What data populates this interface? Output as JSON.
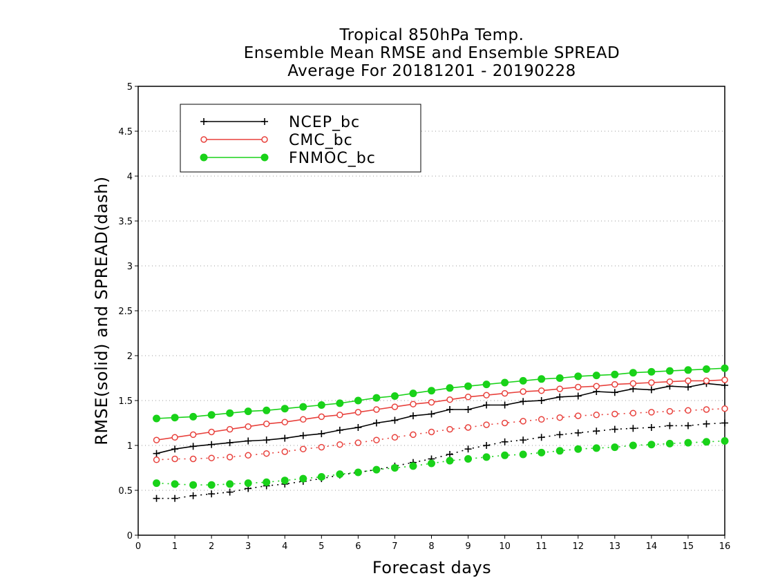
{
  "chart_data": {
    "type": "line",
    "title_lines": [
      "Tropical 850hPa Temp.",
      "Ensemble Mean RMSE and Ensemble SPREAD",
      "Average For 20181201 - 20190228"
    ],
    "xlabel": "Forecast days",
    "ylabel": "RMSE(solid) and SPREAD(dash)",
    "xlim": [
      0,
      16
    ],
    "ylim": [
      0,
      5
    ],
    "xticks": [
      0,
      1,
      2,
      3,
      4,
      5,
      6,
      7,
      8,
      9,
      10,
      11,
      12,
      13,
      14,
      15,
      16
    ],
    "yticks": [
      0,
      0.5,
      1,
      1.5,
      2,
      2.5,
      3,
      3.5,
      4,
      4.5,
      5
    ],
    "ytick_labels": [
      "0",
      "0.5",
      "1",
      "1.5",
      "2",
      "2.5",
      "3",
      "3.5",
      "4",
      "4.5",
      "5"
    ],
    "grid": "horizontal dotted",
    "legend_position": "top-left",
    "x": [
      0.5,
      1,
      1.5,
      2,
      2.5,
      3,
      3.5,
      4,
      4.5,
      5,
      5.5,
      6,
      6.5,
      7,
      7.5,
      8,
      8.5,
      9,
      9.5,
      10,
      10.5,
      11,
      11.5,
      12,
      12.5,
      13,
      13.5,
      14,
      14.5,
      15,
      15.5,
      16
    ],
    "series": [
      {
        "name": "NCEP_bc",
        "color": "#000000",
        "marker": "plus",
        "rmse": [
          0.91,
          0.96,
          0.99,
          1.01,
          1.03,
          1.05,
          1.06,
          1.08,
          1.11,
          1.13,
          1.17,
          1.2,
          1.25,
          1.28,
          1.33,
          1.35,
          1.4,
          1.4,
          1.45,
          1.45,
          1.49,
          1.5,
          1.54,
          1.55,
          1.6,
          1.59,
          1.63,
          1.62,
          1.66,
          1.65,
          1.69,
          1.67
        ],
        "spread": [
          0.41,
          0.41,
          0.44,
          0.46,
          0.48,
          0.52,
          0.55,
          0.57,
          0.6,
          0.63,
          0.67,
          0.7,
          0.73,
          0.77,
          0.81,
          0.85,
          0.9,
          0.96,
          1.0,
          1.04,
          1.06,
          1.09,
          1.12,
          1.14,
          1.16,
          1.18,
          1.19,
          1.2,
          1.22,
          1.22,
          1.24,
          1.25
        ]
      },
      {
        "name": "CMC_bc",
        "color": "#e8413c",
        "marker": "open-circle",
        "rmse": [
          1.06,
          1.09,
          1.12,
          1.15,
          1.18,
          1.21,
          1.24,
          1.26,
          1.29,
          1.32,
          1.34,
          1.37,
          1.4,
          1.43,
          1.46,
          1.48,
          1.51,
          1.54,
          1.56,
          1.58,
          1.6,
          1.61,
          1.63,
          1.65,
          1.66,
          1.68,
          1.69,
          1.7,
          1.71,
          1.72,
          1.72,
          1.73
        ],
        "spread": [
          0.84,
          0.85,
          0.85,
          0.86,
          0.87,
          0.89,
          0.91,
          0.93,
          0.96,
          0.98,
          1.01,
          1.03,
          1.06,
          1.09,
          1.12,
          1.15,
          1.18,
          1.2,
          1.23,
          1.25,
          1.27,
          1.29,
          1.31,
          1.33,
          1.34,
          1.35,
          1.36,
          1.37,
          1.38,
          1.39,
          1.4,
          1.41
        ]
      },
      {
        "name": "FNMOC_bc",
        "color": "#19d219",
        "marker": "filled-circle",
        "rmse": [
          1.3,
          1.31,
          1.32,
          1.34,
          1.36,
          1.38,
          1.39,
          1.41,
          1.43,
          1.45,
          1.47,
          1.5,
          1.53,
          1.55,
          1.58,
          1.61,
          1.64,
          1.66,
          1.68,
          1.7,
          1.72,
          1.74,
          1.75,
          1.77,
          1.78,
          1.79,
          1.81,
          1.82,
          1.83,
          1.84,
          1.85,
          1.86
        ],
        "spread": [
          0.58,
          0.57,
          0.56,
          0.56,
          0.57,
          0.58,
          0.59,
          0.61,
          0.63,
          0.65,
          0.68,
          0.7,
          0.73,
          0.75,
          0.77,
          0.8,
          0.83,
          0.85,
          0.87,
          0.89,
          0.9,
          0.92,
          0.94,
          0.96,
          0.97,
          0.98,
          1.0,
          1.01,
          1.02,
          1.03,
          1.04,
          1.05
        ]
      }
    ]
  }
}
